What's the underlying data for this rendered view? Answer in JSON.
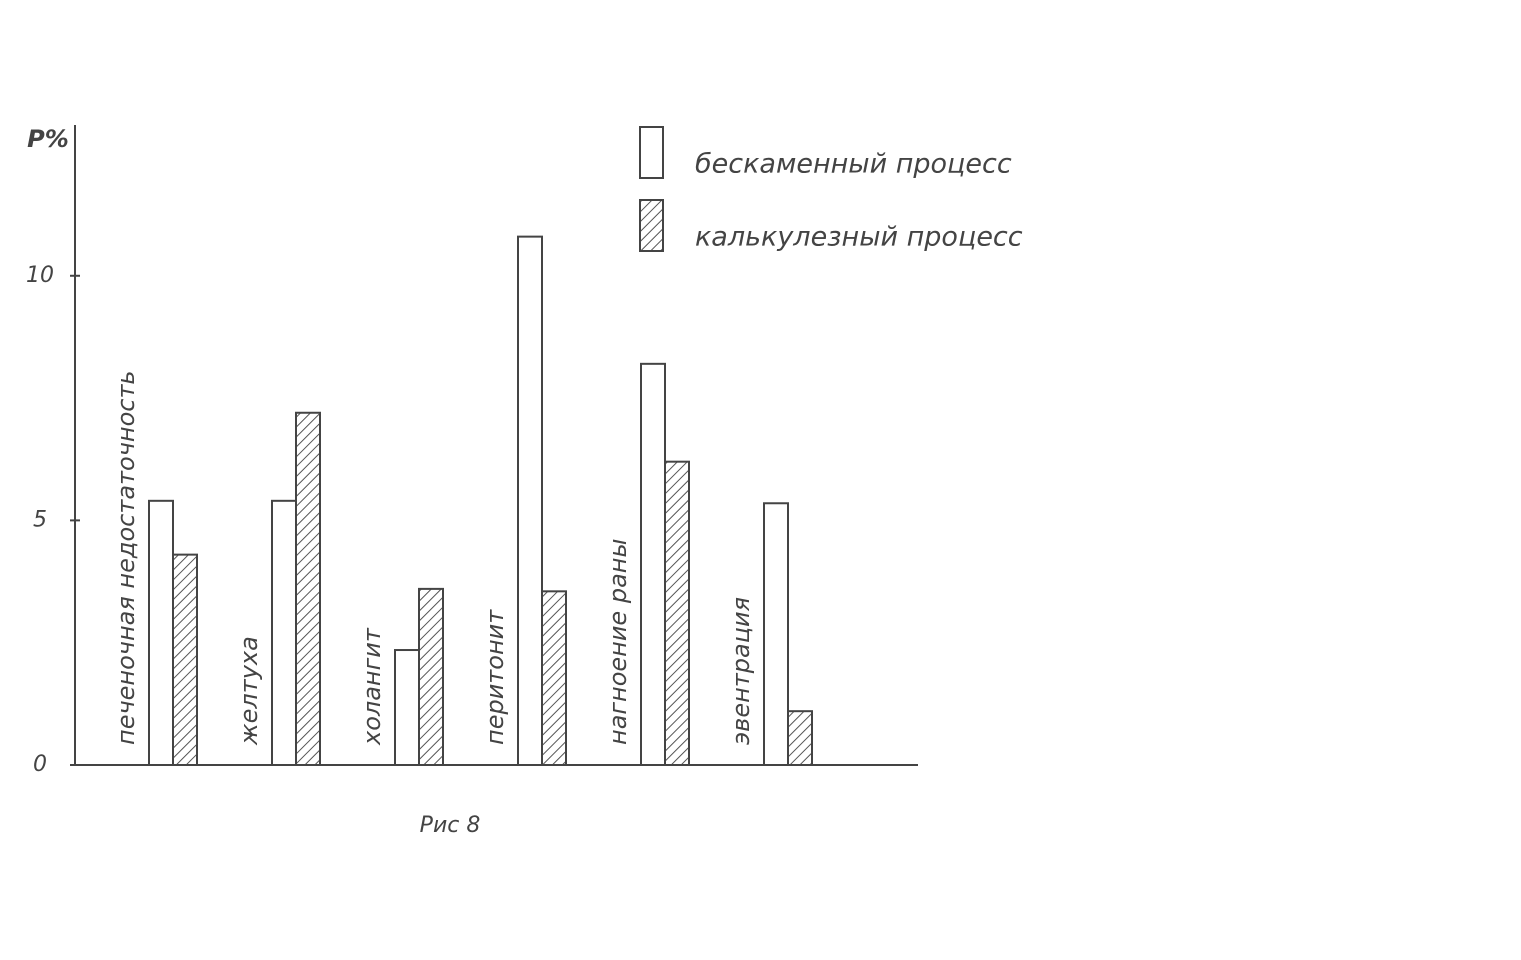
{
  "chart_data": {
    "type": "bar",
    "ylabel": "P%",
    "caption": "Рис 8",
    "categories": [
      "печеночная недостаточность",
      "желтуха",
      "холангит",
      "перитонит",
      "нагноение раны",
      "эвентрация"
    ],
    "series": [
      {
        "name": "бескаменный процесс",
        "color": "#ffffff",
        "hatch": false,
        "values": [
          5.4,
          5.4,
          2.35,
          10.8,
          8.2,
          5.35
        ]
      },
      {
        "name": "калькулезный процесс",
        "color": "#555555",
        "hatch": true,
        "values": [
          4.3,
          7.2,
          3.6,
          3.55,
          6.2,
          1.1
        ]
      }
    ],
    "ylim": [
      0,
      13
    ],
    "yticks": [
      0,
      5,
      10
    ],
    "grid": false,
    "legend": "upper right"
  }
}
